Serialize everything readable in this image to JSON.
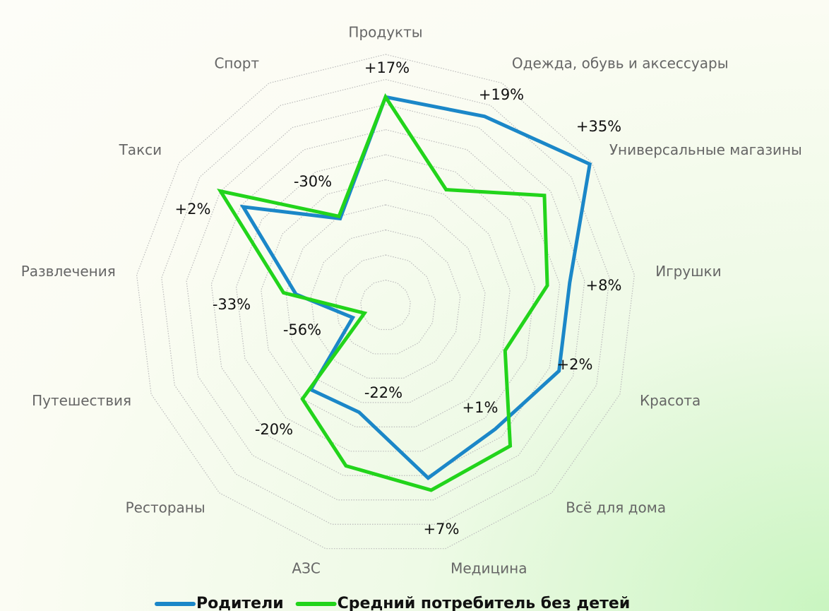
{
  "chart_data": {
    "type": "radar",
    "categories": [
      "Продукты",
      "Одежда, обувь и аксессуары",
      "Универсальные магазины",
      "Игрушки",
      "Красота",
      "Всё для дома",
      "Медицина",
      "АЗС",
      "Рестораны",
      "Путешествия",
      "Развлечения",
      "Такси",
      "Спорт"
    ],
    "series": [
      {
        "name": "Родители",
        "color": "#1b87c8",
        "values": [
          83,
          85,
          99,
          74,
          74,
          66,
          71,
          44,
          45,
          14,
          36,
          69,
          39
        ]
      },
      {
        "name": "Средний потребитель без детей",
        "color": "#22d41b",
        "values": [
          83,
          52,
          77,
          65,
          51,
          75,
          76,
          66,
          50,
          9,
          41,
          80,
          40
        ]
      }
    ],
    "annotations": [
      "+17%",
      "+19%",
      "+35%",
      "+8%",
      "+2%",
      "+1%",
      "+7%",
      "-22%",
      "-20%",
      "-56%",
      "-33%",
      "+2%",
      "-30%"
    ],
    "ylim": [
      0,
      100
    ],
    "yticks": [
      10,
      20,
      30,
      40,
      50,
      60,
      70,
      80,
      90,
      100
    ],
    "grid": true
  }
}
